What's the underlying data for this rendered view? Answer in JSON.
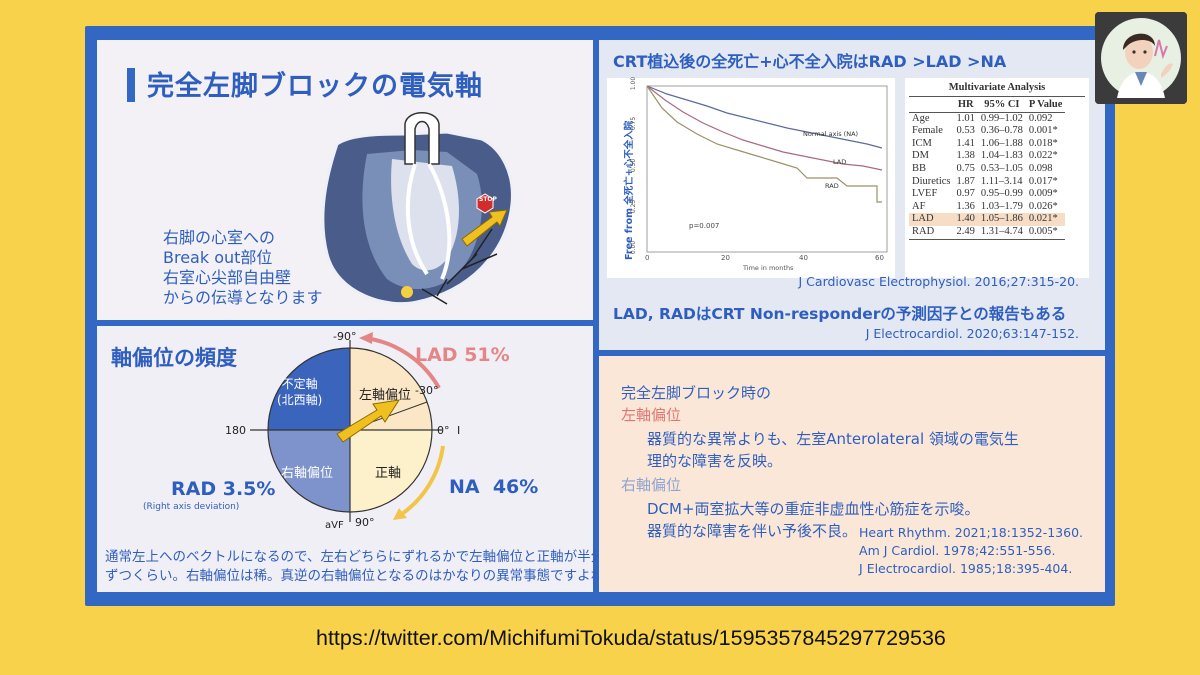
{
  "top_left": {
    "title": "完全左脚ブロックの電気軸",
    "stop_sign": "STOP",
    "text_lines": [
      "右脚の心室への",
      "Break out部位",
      "右室心尖部自由壁",
      "からの伝導となります"
    ]
  },
  "bottom_left": {
    "title": "軸偏位の頻度",
    "label_minus90": "-90°",
    "label_minus30": "-30°",
    "label_0": "0°",
    "label_I": "I",
    "label_180": "180",
    "label_90": "90°",
    "label_aVF": "aVF",
    "q_indeterminate": [
      "不定軸",
      "(北西軸)"
    ],
    "q_lad": "左軸偏位",
    "q_rad": "右軸偏位",
    "q_normal": "正軸",
    "lad_pct": "LAD 51%",
    "na_pct": "NA  46%",
    "rad_pct": "RAD 3.5%",
    "rad_note": "(Right axis deviation)",
    "footer": [
      "通常左上へのベクトルになるので、左右どちらにずれるかで左軸偏位と正軸が半分",
      "ずつくらい。右軸偏位は稀。真逆の右軸偏位となるのはかなりの異常事態ですよね。"
    ]
  },
  "top_right": {
    "title": "CRT植込後の全死亡+心不全入院はRAD >LAD >NA",
    "cite1": "J Cardiovasc Electrophysiol. 2016;27:315-20.",
    "main": "LAD, RADはCRT Non-responderの予測因子との報告もある",
    "cite2": "J Electrocardiol. 2020;63:147-152.",
    "km_chart": {
      "ylabel": "Free from 全死亡+心不全入院",
      "xlabel": "Time in months",
      "yticks": [
        "0.00",
        "0.25",
        "0.50",
        "0.75",
        "1.00"
      ],
      "xticks": [
        "0",
        "20",
        "40",
        "60"
      ],
      "p_value": "p=0.007",
      "series_labels": [
        "Normal axis (NA)",
        "LAD",
        "RAD"
      ],
      "colors": {
        "NA": "#5b6b9a",
        "LAD": "#a86a82",
        "RAD": "#9a9268"
      }
    },
    "multivariate": {
      "title": "Multivariate Analysis",
      "columns": [
        "",
        "HR",
        "95% CI",
        "P Value"
      ],
      "rows": [
        [
          "Age",
          "1.01",
          "0.99–1.02",
          "0.092"
        ],
        [
          "Female",
          "0.53",
          "0.36–0.78",
          "0.001*"
        ],
        [
          "ICM",
          "1.41",
          "1.06–1.88",
          "0.018*"
        ],
        [
          "DM",
          "1.38",
          "1.04–1.83",
          "0.022*"
        ],
        [
          "BB",
          "0.75",
          "0.53–1.05",
          "0.098"
        ],
        [
          "Diuretics",
          "1.87",
          "1.11–3.14",
          "0.017*"
        ],
        [
          "LVEF",
          "0.97",
          "0.95–0.99",
          "0.009*"
        ],
        [
          "AF",
          "1.36",
          "1.03–1.79",
          "0.026*"
        ],
        [
          "LAD",
          "1.40",
          "1.05–1.86",
          "0.021*"
        ],
        [
          "RAD",
          "2.49",
          "1.31–4.74",
          "0.005*"
        ]
      ]
    }
  },
  "bottom_right": {
    "l1": "完全左脚ブロック時の",
    "l2": "左軸偏位",
    "l3": "器質的な異常よりも、左室Anterolateral 領域の電気生",
    "l4": "理的な障害を反映。",
    "l5": "右軸偏位",
    "l6": "DCM+両室拡大等の重症非虚血性心筋症を示唆。",
    "l7": "器質的な障害を伴い予後不良。",
    "refs": [
      "Heart Rhythm. 2021;18:1352-1360.",
      "Am J Cardiol. 1978;42:551-556.",
      "J Electrocardiol. 1985;18:395-404."
    ]
  },
  "url": "https://twitter.com/MichifumiTokuda/status/1595357845297729536"
}
